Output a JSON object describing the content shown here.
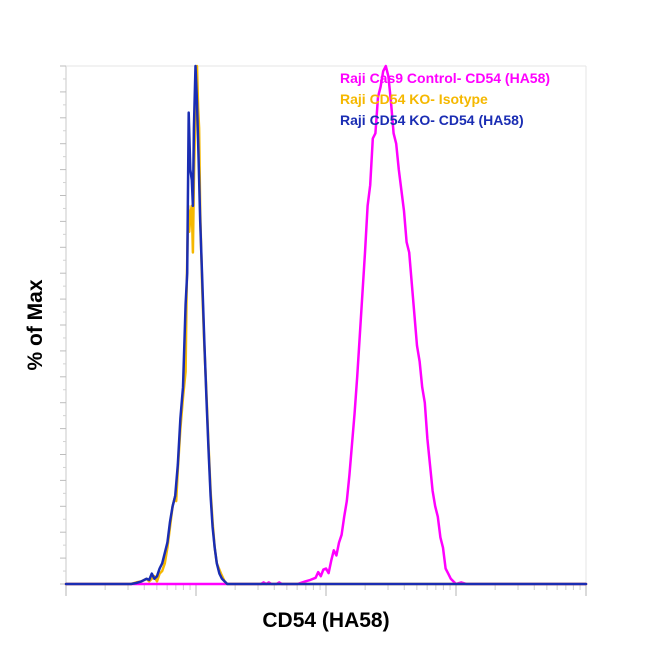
{
  "chart_data": {
    "type": "line",
    "title": "",
    "xlabel": "CD54 (HA58)",
    "ylabel": "% of Max",
    "xlim": [
      0,
      1000
    ],
    "ylim": [
      0,
      100
    ],
    "grid": false,
    "legend_position": "top-right",
    "series": [
      {
        "name": "Raji Cas9 Control- CD54 (HA58)",
        "color": "#ff00ff",
        "points": [
          [
            0,
            0
          ],
          [
            250,
            0
          ],
          [
            300,
            0
          ],
          [
            325,
            0
          ],
          [
            350,
            0
          ],
          [
            375,
            0
          ],
          [
            380,
            0.3
          ],
          [
            385,
            0
          ],
          [
            390,
            0.3
          ],
          [
            395,
            0
          ],
          [
            405,
            0
          ],
          [
            410,
            0.3
          ],
          [
            415,
            0
          ],
          [
            425,
            0
          ],
          [
            435,
            0
          ],
          [
            445,
            0
          ],
          [
            460,
            0.5
          ],
          [
            470,
            0.8
          ],
          [
            480,
            1.2
          ],
          [
            485,
            2.3
          ],
          [
            490,
            1.5
          ],
          [
            495,
            2.8
          ],
          [
            500,
            3
          ],
          [
            505,
            2.1
          ],
          [
            510,
            4.5
          ],
          [
            515,
            6.5
          ],
          [
            520,
            5.5
          ],
          [
            525,
            8
          ],
          [
            530,
            9.5
          ],
          [
            535,
            13
          ],
          [
            540,
            16
          ],
          [
            545,
            21
          ],
          [
            550,
            27
          ],
          [
            555,
            33
          ],
          [
            560,
            40
          ],
          [
            565,
            48
          ],
          [
            570,
            56
          ],
          [
            575,
            64
          ],
          [
            580,
            73
          ],
          [
            585,
            77
          ],
          [
            590,
            86
          ],
          [
            595,
            87
          ],
          [
            600,
            94
          ],
          [
            605,
            96
          ],
          [
            610,
            99
          ],
          [
            615,
            100
          ],
          [
            620,
            98
          ],
          [
            625,
            93
          ],
          [
            630,
            87
          ],
          [
            635,
            85
          ],
          [
            640,
            80
          ],
          [
            645,
            76
          ],
          [
            650,
            72
          ],
          [
            655,
            66
          ],
          [
            660,
            64
          ],
          [
            665,
            58
          ],
          [
            670,
            52
          ],
          [
            675,
            46
          ],
          [
            680,
            43
          ],
          [
            685,
            38
          ],
          [
            690,
            35
          ],
          [
            695,
            28
          ],
          [
            700,
            23
          ],
          [
            705,
            18
          ],
          [
            710,
            15
          ],
          [
            715,
            13
          ],
          [
            720,
            9
          ],
          [
            725,
            7
          ],
          [
            730,
            3
          ],
          [
            735,
            2
          ],
          [
            740,
            1
          ],
          [
            750,
            0
          ],
          [
            760,
            0.3
          ],
          [
            770,
            0
          ],
          [
            800,
            0
          ],
          [
            1000,
            0
          ]
        ]
      },
      {
        "name": "Raji CD54 KO- Isotype",
        "color": "#f5b800",
        "points": [
          [
            0,
            0
          ],
          [
            125,
            0
          ],
          [
            135,
            0.3
          ],
          [
            145,
            0.5
          ],
          [
            155,
            1
          ],
          [
            160,
            0.5
          ],
          [
            165,
            1
          ],
          [
            170,
            1.5
          ],
          [
            175,
            0.5
          ],
          [
            180,
            2
          ],
          [
            185,
            2.5
          ],
          [
            190,
            4
          ],
          [
            195,
            7
          ],
          [
            200,
            11
          ],
          [
            205,
            15
          ],
          [
            210,
            17
          ],
          [
            212,
            16
          ],
          [
            215,
            22
          ],
          [
            220,
            30
          ],
          [
            225,
            36
          ],
          [
            230,
            41
          ],
          [
            232,
            56
          ],
          [
            235,
            73
          ],
          [
            237,
            68
          ],
          [
            240,
            72
          ],
          [
            242,
            73
          ],
          [
            244,
            64
          ],
          [
            246,
            78
          ],
          [
            248,
            88
          ],
          [
            250,
            96
          ],
          [
            252,
            100
          ],
          [
            254,
            92
          ],
          [
            256,
            88
          ],
          [
            258,
            72
          ],
          [
            262,
            57
          ],
          [
            266,
            46
          ],
          [
            270,
            37
          ],
          [
            274,
            27
          ],
          [
            278,
            18
          ],
          [
            282,
            12
          ],
          [
            286,
            7
          ],
          [
            290,
            4
          ],
          [
            294,
            3
          ],
          [
            298,
            2
          ],
          [
            305,
            0.5
          ],
          [
            310,
            0
          ],
          [
            1000,
            0
          ]
        ]
      },
      {
        "name": "Raji CD54 KO- CD54 (HA58)",
        "color": "#1a2db3",
        "points": [
          [
            0,
            0
          ],
          [
            125,
            0
          ],
          [
            135,
            0.2
          ],
          [
            145,
            0.5
          ],
          [
            155,
            1
          ],
          [
            160,
            0.8
          ],
          [
            165,
            2
          ],
          [
            170,
            1
          ],
          [
            175,
            1.5
          ],
          [
            180,
            3
          ],
          [
            185,
            4
          ],
          [
            190,
            6
          ],
          [
            195,
            8
          ],
          [
            200,
            12
          ],
          [
            205,
            15
          ],
          [
            210,
            17
          ],
          [
            215,
            23
          ],
          [
            220,
            32
          ],
          [
            225,
            38
          ],
          [
            230,
            54
          ],
          [
            233,
            60
          ],
          [
            236,
            91
          ],
          [
            239,
            80
          ],
          [
            242,
            78
          ],
          [
            244,
            73
          ],
          [
            246,
            88
          ],
          [
            249,
            100
          ],
          [
            252,
            93
          ],
          [
            255,
            82
          ],
          [
            258,
            70
          ],
          [
            262,
            59
          ],
          [
            266,
            47
          ],
          [
            270,
            36
          ],
          [
            274,
            26
          ],
          [
            278,
            17
          ],
          [
            282,
            11
          ],
          [
            286,
            7
          ],
          [
            290,
            4
          ],
          [
            295,
            2
          ],
          [
            300,
            1
          ],
          [
            310,
            0
          ],
          [
            1000,
            0
          ]
        ]
      }
    ]
  }
}
